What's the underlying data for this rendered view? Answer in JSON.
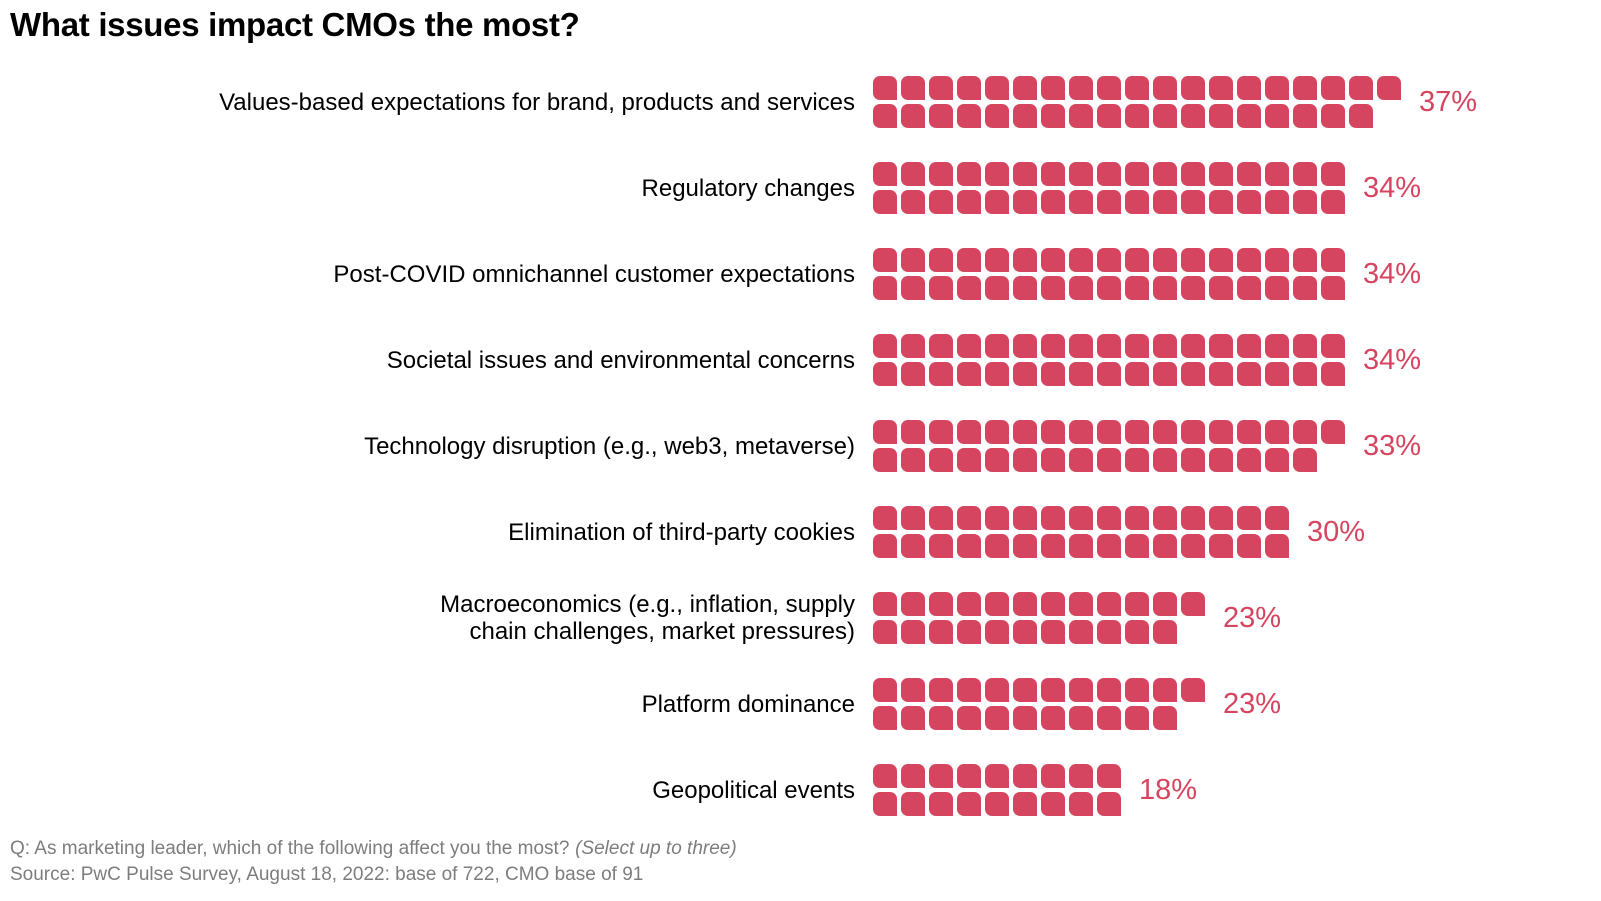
{
  "chart_data": {
    "type": "bar",
    "variant": "pictogram-waffle",
    "title": "What issues impact CMOs the most?",
    "unit_pct_per_square": 1,
    "squares_per_column": 2,
    "fill_order": "column-by-column, extra odd square on top row",
    "legend_position": "none",
    "grid": false,
    "categories": [
      "Values-based expectations for brand, products and services",
      "Regulatory changes",
      "Post-COVID omnichannel customer expectations",
      "Societal issues and environmental concerns",
      "Technology disruption (e.g., web3, metaverse)",
      "Elimination of third-party cookies",
      "Macroeconomics (e.g., inflation, supply\nchain challenges, market pressures)",
      "Platform dominance",
      "Geopolitical events"
    ],
    "values": [
      37,
      34,
      34,
      34,
      33,
      30,
      23,
      23,
      18
    ],
    "value_labels": [
      "37%",
      "34%",
      "34%",
      "34%",
      "33%",
      "30%",
      "23%",
      "23%",
      "18%"
    ],
    "colors": {
      "square": "#d6455f",
      "pct_label": "#d6455f",
      "category_label": "#000000",
      "title": "#000000",
      "footnote": "#7d7d7d",
      "background": "#ffffff"
    }
  },
  "footer": {
    "question": "Q: As marketing leader, which of the following affect you the most?",
    "question_note": "(Select up to three)",
    "source": "Source: PwC Pulse Survey, August 18, 2022: base of 722, CMO base of 91"
  }
}
